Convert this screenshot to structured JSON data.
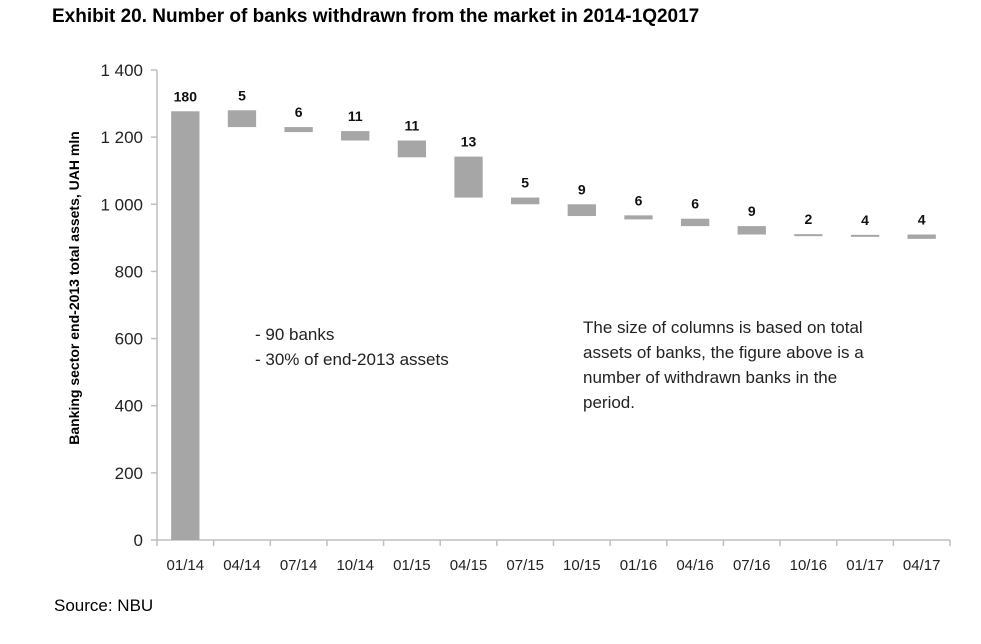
{
  "title": "Exhibit 20. Number of banks withdrawn from the market in 2014-1Q2017",
  "source": "Source: NBU",
  "colors": {
    "bar": "#a6a6a6",
    "axis": "#bfbfbf"
  },
  "chart_data": {
    "type": "bar",
    "subtype": "waterfall",
    "ylabel": "Banking sector end-2013 total assets, UAH mln",
    "ylim": [
      0,
      1400
    ],
    "yticks": [
      "0",
      "200",
      "400",
      "600",
      "800",
      "1 000",
      "1 200",
      "1 400"
    ],
    "ytick_values": [
      0,
      200,
      400,
      600,
      800,
      1000,
      1200,
      1400
    ],
    "grid": false,
    "categories": [
      "01/14",
      "04/14",
      "07/14",
      "10/14",
      "01/15",
      "04/15",
      "07/15",
      "10/15",
      "01/16",
      "04/16",
      "07/16",
      "10/16",
      "01/17",
      "04/17"
    ],
    "bars": [
      {
        "low": 0,
        "high": 1277
      },
      {
        "low": 1230,
        "high": 1280
      },
      {
        "low": 1215,
        "high": 1230
      },
      {
        "low": 1190,
        "high": 1218
      },
      {
        "low": 1140,
        "high": 1190
      },
      {
        "low": 1020,
        "high": 1142
      },
      {
        "low": 1000,
        "high": 1020
      },
      {
        "low": 965,
        "high": 1000
      },
      {
        "low": 955,
        "high": 967
      },
      {
        "low": 935,
        "high": 957
      },
      {
        "low": 910,
        "high": 935
      },
      {
        "low": 907,
        "high": 911
      },
      {
        "low": 905,
        "high": 909
      },
      {
        "low": 897,
        "high": 910
      }
    ],
    "labels": [
      "180",
      "5",
      "6",
      "11",
      "11",
      "13",
      "5",
      "9",
      "6",
      "6",
      "9",
      "2",
      "4",
      "4"
    ],
    "annotations": {
      "left": [
        "- 90 banks",
        "- 30% of end-2013 assets"
      ],
      "right": [
        "The size of columns is based on total",
        "assets of banks, the figure above is a",
        "number of withdrawn banks in the",
        "period."
      ]
    }
  }
}
